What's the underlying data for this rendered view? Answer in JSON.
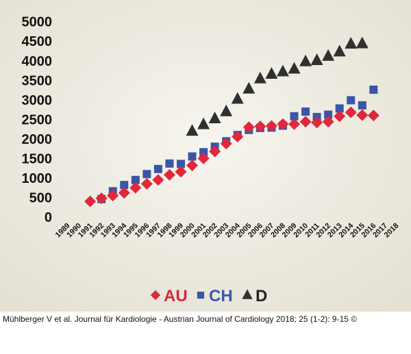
{
  "chart_data": {
    "type": "scatter",
    "title": "",
    "xlabel": "",
    "ylabel": "",
    "ylim": [
      0,
      5000
    ],
    "y_ticks": [
      "0",
      "500",
      "1000",
      "1500",
      "2000",
      "2500",
      "3000",
      "3500",
      "4000",
      "4500",
      "5000"
    ],
    "xlim": [
      1989,
      2018
    ],
    "x_ticks": [
      "1989",
      "1990",
      "1991",
      "1992",
      "1993",
      "1994",
      "1995",
      "1996",
      "1997",
      "1998",
      "1999",
      "2000",
      "2001",
      "2002",
      "2003",
      "2004",
      "2005",
      "2006",
      "2007",
      "2008",
      "2009",
      "2010",
      "2011",
      "2012",
      "2013",
      "2014",
      "2015",
      "2016",
      "2017",
      "2018"
    ],
    "grid": false,
    "legend_position": "bottom-center",
    "series": [
      {
        "name": "AU",
        "marker": "diamond",
        "color": "#e0283c",
        "x": [
          1991,
          1992,
          1993,
          1994,
          1995,
          1996,
          1997,
          1998,
          1999,
          2000,
          2001,
          2002,
          2003,
          2004,
          2005,
          2006,
          2007,
          2008,
          2009,
          2010,
          2011,
          2012,
          2013,
          2014,
          2015,
          2016
        ],
        "y": [
          400,
          480,
          550,
          620,
          750,
          850,
          950,
          1080,
          1160,
          1320,
          1500,
          1680,
          1880,
          2060,
          2300,
          2320,
          2330,
          2380,
          2380,
          2440,
          2420,
          2440,
          2580,
          2680,
          2610,
          2600
        ]
      },
      {
        "name": "CH",
        "marker": "square",
        "color": "#3a56a8",
        "x": [
          1992,
          1993,
          1994,
          1995,
          1996,
          1997,
          1998,
          1999,
          2000,
          2001,
          2002,
          2003,
          2004,
          2005,
          2006,
          2007,
          2008,
          2009,
          2010,
          2011,
          2012,
          2013,
          2014,
          2015,
          2016
        ],
        "y": [
          460,
          660,
          820,
          950,
          1100,
          1230,
          1370,
          1360,
          1550,
          1660,
          1800,
          1940,
          2100,
          2230,
          2280,
          2290,
          2340,
          2580,
          2700,
          2560,
          2620,
          2780,
          2990,
          2860,
          3260
        ]
      },
      {
        "name": "D",
        "marker": "triangle",
        "color": "#303030",
        "x": [
          2000,
          2001,
          2002,
          2003,
          2004,
          2005,
          2006,
          2007,
          2008,
          2009,
          2010,
          2011,
          2012,
          2013,
          2014,
          2015
        ],
        "y": [
          2200,
          2370,
          2520,
          2700,
          3020,
          3280,
          3540,
          3660,
          3720,
          3790,
          3980,
          4010,
          4120,
          4230,
          4430,
          4440
        ]
      }
    ]
  },
  "citation": "Mühlberger V et al. Journal für Kardiologie - Austrian Journal of Cardiology 2018; 25 (1-2): 9-15 ©"
}
